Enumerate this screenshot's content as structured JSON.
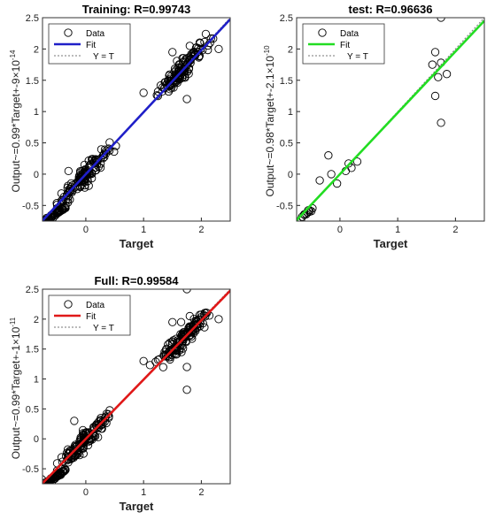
{
  "chart_data": [
    {
      "type": "scatter",
      "title": "Training: R=0.99743",
      "xlabel": "Target",
      "ylabel": "Output~=0.99*Target+-9×10",
      "ylabel_exp": "-14",
      "xlim": [
        -0.75,
        2.5
      ],
      "ylim": [
        -0.75,
        2.5
      ],
      "xticks": [
        "0",
        "1",
        "2"
      ],
      "yticks": [
        "-0.5",
        "0",
        "0.5",
        "1",
        "1.5",
        "2",
        "2.5"
      ],
      "fit_color": "#1f1fc8",
      "fit": {
        "slope": 0.99,
        "intercept": 0.0
      },
      "legend": [
        "Data",
        "Fit",
        "Y = T"
      ],
      "clusters": [
        {
          "cx": -0.55,
          "cy": -0.65,
          "spread": 0.05,
          "n": 60
        },
        {
          "cx": -0.05,
          "cy": -0.05,
          "spread": 0.22,
          "n": 130
        },
        {
          "cx": 1.7,
          "cy": 1.7,
          "spread": 0.22,
          "n": 130
        }
      ],
      "points": [
        {
          "x": 1.25,
          "y": 1.32
        },
        {
          "x": 1.45,
          "y": 1.45
        },
        {
          "x": 1.8,
          "y": 2.05
        },
        {
          "x": 2.3,
          "y": 2.0
        },
        {
          "x": 1.75,
          "y": 1.2
        },
        {
          "x": 1.0,
          "y": 1.3
        },
        {
          "x": -0.3,
          "y": 0.05
        },
        {
          "x": 0.3,
          "y": 0.3
        },
        {
          "x": 1.5,
          "y": 1.95
        }
      ]
    },
    {
      "type": "scatter",
      "title": "test: R=0.96636",
      "xlabel": "Target",
      "ylabel": "Output~=0.98*Target+-2.1×10",
      "ylabel_exp": "-10",
      "xlim": [
        -0.75,
        2.5
      ],
      "ylim": [
        -0.75,
        2.5
      ],
      "xticks": [
        "0",
        "1",
        "2"
      ],
      "yticks": [
        "-0.5",
        "0",
        "0.5",
        "1",
        "1.5",
        "2",
        "2.5"
      ],
      "fit_color": "#22dd22",
      "fit": {
        "slope": 0.98,
        "intercept": 0.0
      },
      "legend": [
        "Data",
        "Fit",
        "Y = T"
      ],
      "clusters": [
        {
          "cx": -0.65,
          "cy": -0.68,
          "spread": 0.05,
          "n": 14
        }
      ],
      "points": [
        {
          "x": 1.75,
          "y": 2.5
        },
        {
          "x": 1.65,
          "y": 1.95
        },
        {
          "x": 1.6,
          "y": 1.75
        },
        {
          "x": 1.75,
          "y": 1.78
        },
        {
          "x": 1.85,
          "y": 1.6
        },
        {
          "x": 1.7,
          "y": 1.55
        },
        {
          "x": 1.65,
          "y": 1.25
        },
        {
          "x": 1.75,
          "y": 0.82
        },
        {
          "x": -0.2,
          "y": 0.3
        },
        {
          "x": -0.15,
          "y": 0.0
        },
        {
          "x": -0.35,
          "y": -0.1
        },
        {
          "x": -0.05,
          "y": -0.15
        },
        {
          "x": 0.1,
          "y": 0.05
        },
        {
          "x": 0.2,
          "y": 0.1
        },
        {
          "x": 0.15,
          "y": 0.17
        },
        {
          "x": 0.3,
          "y": 0.2
        }
      ]
    },
    {
      "type": "scatter",
      "title": "Full: R=0.99584",
      "xlabel": "Target",
      "ylabel": "Output~=0.99*Target+-1×10",
      "ylabel_exp": "-11",
      "xlim": [
        -0.75,
        2.5
      ],
      "ylim": [
        -0.75,
        2.5
      ],
      "xticks": [
        "0",
        "1",
        "2"
      ],
      "yticks": [
        "-0.5",
        "0",
        "0.5",
        "1",
        "1.5",
        "2",
        "2.5"
      ],
      "fit_color": "#e01818",
      "fit": {
        "slope": 0.99,
        "intercept": 0.0
      },
      "legend": [
        "Data",
        "Fit",
        "Y = T"
      ],
      "clusters": [
        {
          "cx": -0.55,
          "cy": -0.65,
          "spread": 0.05,
          "n": 70
        },
        {
          "cx": -0.05,
          "cy": -0.05,
          "spread": 0.22,
          "n": 140
        },
        {
          "cx": 1.7,
          "cy": 1.7,
          "spread": 0.22,
          "n": 140
        }
      ],
      "points": [
        {
          "x": 1.25,
          "y": 1.32
        },
        {
          "x": 1.45,
          "y": 1.45
        },
        {
          "x": 1.8,
          "y": 2.05
        },
        {
          "x": 2.3,
          "y": 2.0
        },
        {
          "x": 1.75,
          "y": 1.2
        },
        {
          "x": 1.0,
          "y": 1.3
        },
        {
          "x": 1.75,
          "y": 0.82
        },
        {
          "x": -0.2,
          "y": 0.3
        },
        {
          "x": 1.75,
          "y": 2.5
        },
        {
          "x": 1.65,
          "y": 1.95
        },
        {
          "x": 0.3,
          "y": 0.3
        },
        {
          "x": 1.5,
          "y": 1.95
        }
      ]
    }
  ]
}
